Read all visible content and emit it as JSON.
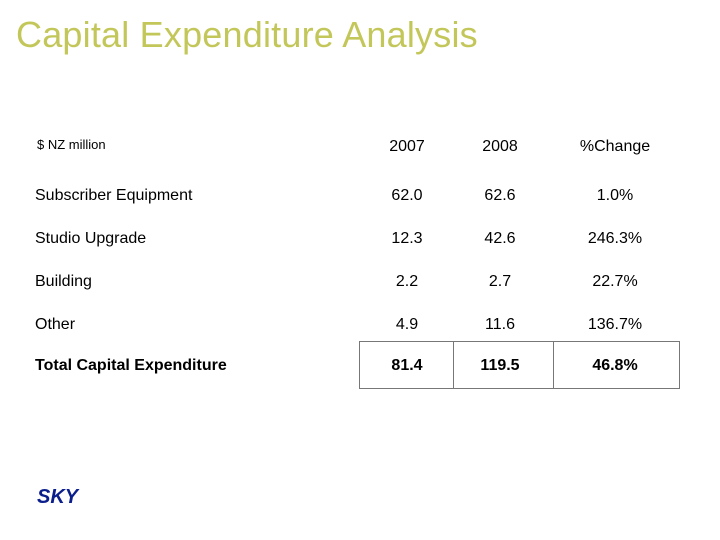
{
  "slide": {
    "title": "Capital Expenditure Analysis",
    "unit": "$ NZ million",
    "headers": [
      "2007",
      "2008",
      "%Change"
    ],
    "rows": [
      {
        "label": "Subscriber Equipment",
        "v2007": "62.0",
        "v2008": "62.6",
        "change": "1.0%"
      },
      {
        "label": "Studio Upgrade",
        "v2007": "12.3",
        "v2008": "42.6",
        "change": "246.3%"
      },
      {
        "label": "Building",
        "v2007": "2.2",
        "v2008": "2.7",
        "change": "22.7%"
      },
      {
        "label": "Other",
        "v2007": "4.9",
        "v2008": "11.6",
        "change": "136.7%"
      }
    ],
    "total": {
      "label": "Total Capital Expenditure",
      "v2007": "81.4",
      "v2008": "119.5",
      "change": "46.8%"
    },
    "logo_text": "SKY"
  },
  "colors": {
    "title": "#c3c75a",
    "logo": "#0a1e8c"
  }
}
